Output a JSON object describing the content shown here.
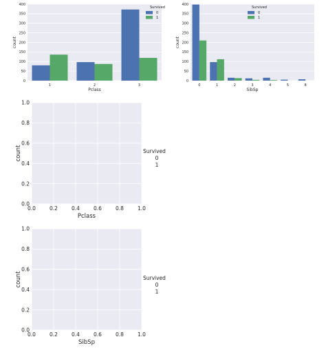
{
  "chart_data": [
    {
      "type": "bar",
      "categories": [
        "1",
        "2",
        "3"
      ],
      "series": [
        {
          "name": "0",
          "values": [
            80,
            97,
            372
          ]
        },
        {
          "name": "1",
          "values": [
            136,
            87,
            119
          ]
        }
      ],
      "colors": [
        "#4c72b0",
        "#55a868"
      ],
      "xlabel": "Pclass",
      "ylabel": "count",
      "ylim": [
        0,
        400
      ],
      "yticks": [
        "0",
        "50",
        "100",
        "150",
        "200",
        "250",
        "300",
        "350",
        "400"
      ],
      "legend": {
        "title": "Survived",
        "placement": "top-right"
      },
      "grid": true
    },
    {
      "type": "bar",
      "categories": [
        "0",
        "1",
        "2",
        "3",
        "4",
        "5",
        "8"
      ],
      "series": [
        {
          "name": "0",
          "values": [
            398,
            97,
            15,
            12,
            15,
            5,
            7
          ]
        },
        {
          "name": "1",
          "values": [
            210,
            112,
            13,
            4,
            3,
            0,
            0
          ]
        }
      ],
      "colors": [
        "#4c72b0",
        "#55a868"
      ],
      "xlabel": "SibSp",
      "ylabel": "count",
      "ylim": [
        0,
        400
      ],
      "yticks": [
        "0",
        "50",
        "100",
        "150",
        "200",
        "250",
        "300",
        "350",
        "400"
      ],
      "legend": {
        "title": "Survived",
        "placement": "top-center"
      },
      "grid": true
    },
    {
      "type": "bar",
      "categories": [],
      "series": [],
      "xlabel": "Pclass",
      "ylabel": "count",
      "xlim": [
        0,
        1
      ],
      "ylim": [
        0,
        1
      ],
      "xticks": [
        "0.0",
        "0.2",
        "0.4",
        "0.6",
        "0.8",
        "1.0"
      ],
      "yticks": [
        "0.0",
        "0.2",
        "0.4",
        "0.6",
        "0.8",
        "1.0"
      ],
      "legend": {
        "title": "Survived",
        "entries": [
          "0",
          "1"
        ],
        "placement": "outside-right"
      },
      "grid": true
    },
    {
      "type": "bar",
      "categories": [],
      "series": [],
      "xlabel": "SibSp",
      "ylabel": "count",
      "xlim": [
        0,
        1
      ],
      "ylim": [
        0,
        1
      ],
      "xticks": [
        "0.0",
        "0.2",
        "0.4",
        "0.6",
        "0.8",
        "1.0"
      ],
      "yticks": [
        "0.0",
        "0.2",
        "0.4",
        "0.6",
        "0.8",
        "1.0"
      ],
      "legend": {
        "title": "Survived",
        "entries": [
          "0",
          "1"
        ],
        "placement": "outside-right"
      },
      "grid": true
    }
  ]
}
